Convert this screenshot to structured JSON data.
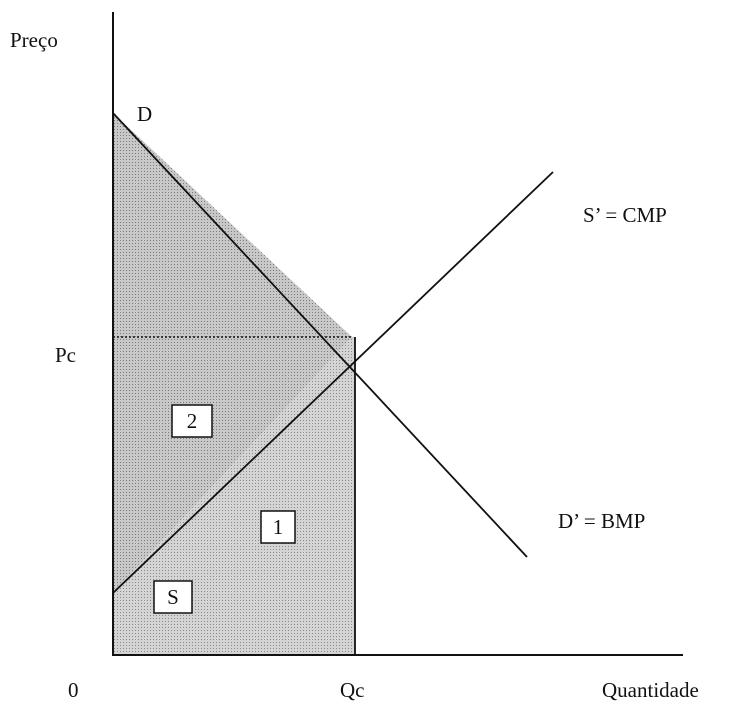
{
  "axes": {
    "y_label": "Preço",
    "x_label": "Quantidade",
    "origin": "0"
  },
  "curves": {
    "demand_start": "D",
    "supply_start": "S",
    "supply": "S’ = CMP",
    "demand": "D’ = BMP"
  },
  "equilibrium": {
    "price": "Pc",
    "quantity": "Qc"
  },
  "areas": {
    "upper": "2",
    "lower": "1"
  }
}
